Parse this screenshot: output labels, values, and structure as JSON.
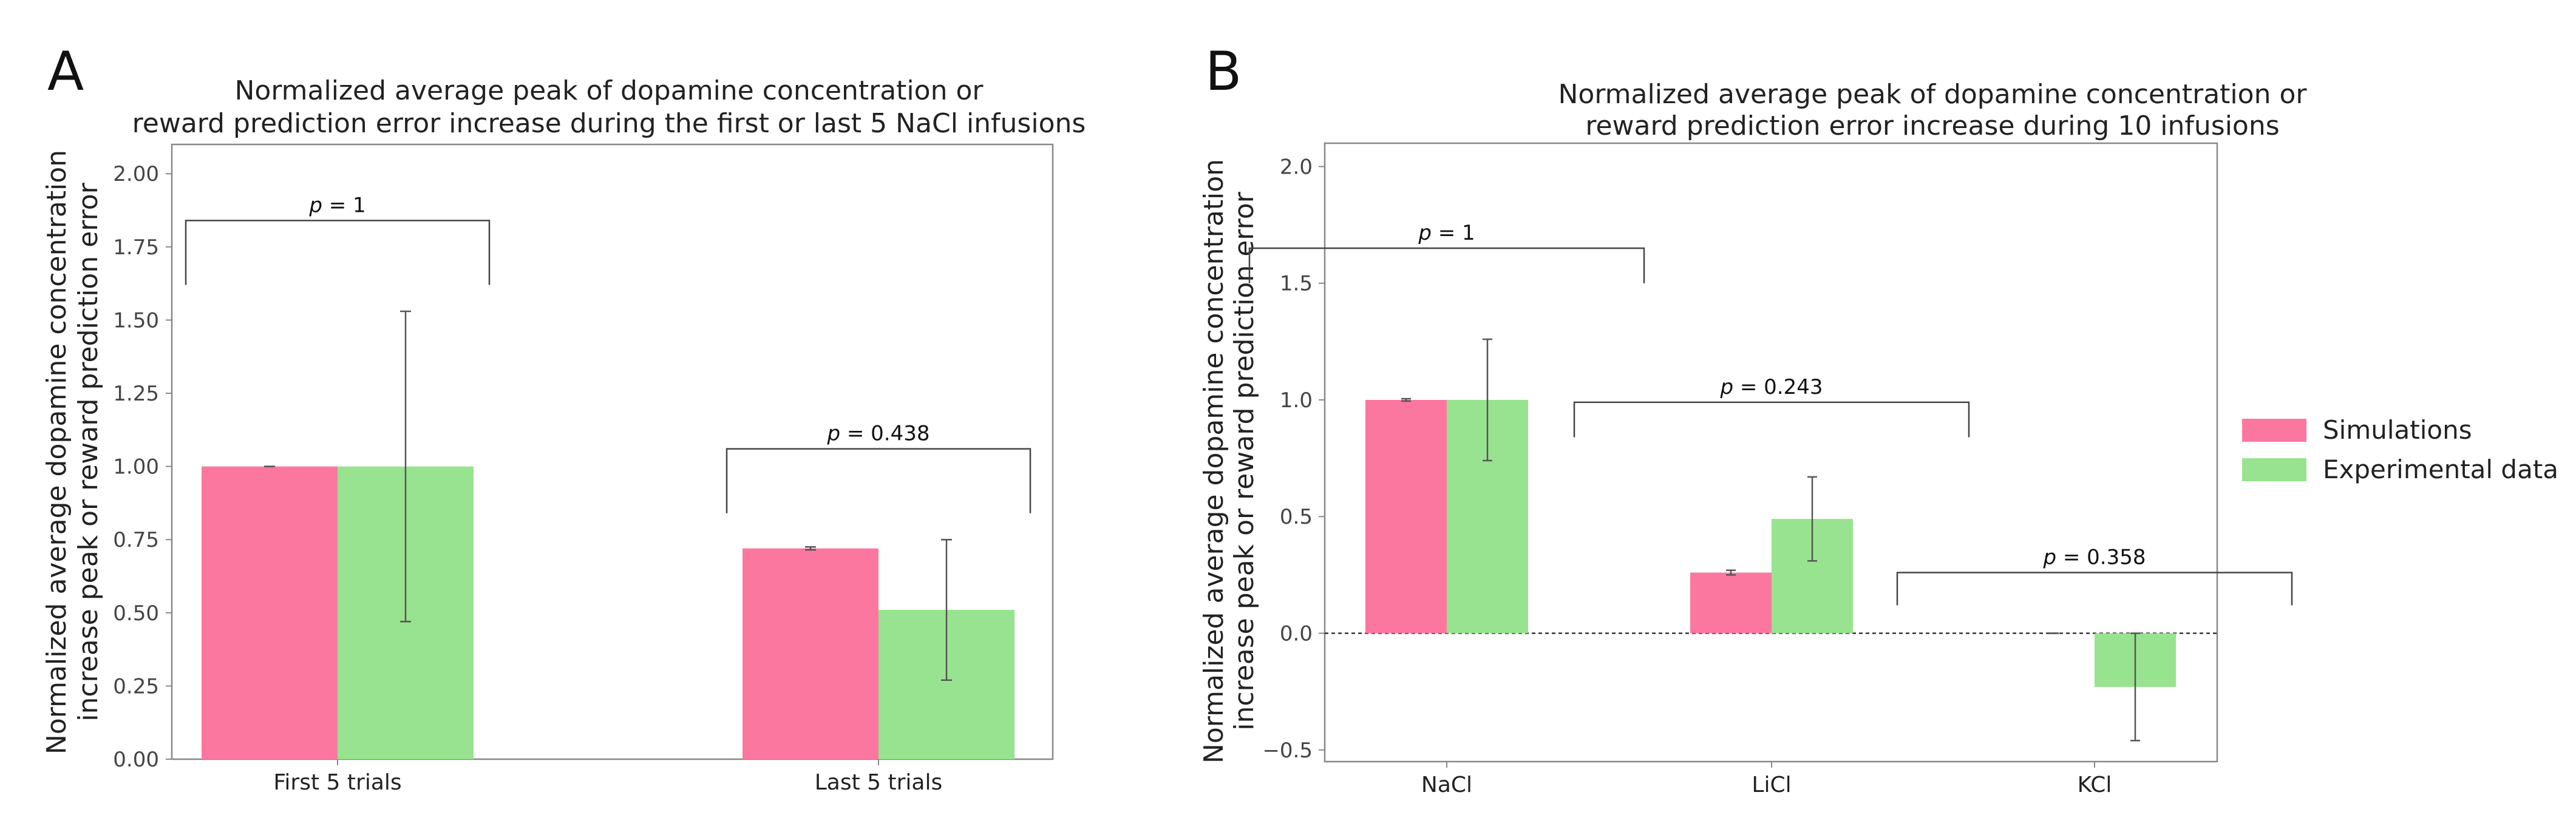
{
  "colors": {
    "simulations": "#fb77a0",
    "experimental": "#98e38f"
  },
  "legend": {
    "simulations_label": "Simulations",
    "experimental_label": "Experimental data"
  },
  "chart_data": [
    {
      "panel": "A",
      "type": "bar",
      "title_line1": "Normalized average peak of dopamine concentration or",
      "title_line2": "reward prediction error increase during the first or last 5 NaCl infusions",
      "ylabel_line1": "Normalized average dopamine concentration",
      "ylabel_line2": "increase peak or reward prediction error",
      "categories": [
        "First 5 trials",
        "Last 5 trials"
      ],
      "ylim": [
        0,
        2.1
      ],
      "yticks": [
        0.0,
        0.25,
        0.5,
        0.75,
        1.0,
        1.25,
        1.5,
        1.75,
        2.0
      ],
      "ytick_labels": [
        "0.00",
        "0.25",
        "0.50",
        "0.75",
        "1.00",
        "1.25",
        "1.50",
        "1.75",
        "2.00"
      ],
      "series": [
        {
          "name": "Simulations",
          "values": [
            1.0,
            0.72
          ],
          "err_low": [
            1.0,
            0.715
          ],
          "err_high": [
            1.0,
            0.725
          ]
        },
        {
          "name": "Experimental data",
          "values": [
            1.0,
            0.51
          ],
          "err_low": [
            0.47,
            0.27
          ],
          "err_high": [
            1.53,
            0.75
          ]
        }
      ],
      "pvalues": [
        {
          "category": 0,
          "label": "p = 1",
          "y": 1.84,
          "drop": 1.62
        },
        {
          "category": 1,
          "label": "p = 0.438",
          "y": 1.06,
          "drop": 0.84
        }
      ]
    },
    {
      "panel": "B",
      "type": "bar",
      "title_line1": "Normalized average peak of dopamine concentration or",
      "title_line2": "reward prediction error increase during 10 infusions",
      "ylabel_line1": "Normalized average dopamine concentration",
      "ylabel_line2": "increase peak or reward prediction error",
      "categories": [
        "NaCl",
        "LiCl",
        "KCl"
      ],
      "ylim": [
        -0.55,
        2.1
      ],
      "yticks": [
        -0.5,
        0.0,
        0.5,
        1.0,
        1.5,
        2.0
      ],
      "ytick_labels": [
        "−0.5",
        "0.0",
        "0.5",
        "1.0",
        "1.5",
        "2.0"
      ],
      "zero_line": true,
      "series": [
        {
          "name": "Simulations",
          "values": [
            1.0,
            0.26,
            0.0
          ],
          "err_low": [
            0.995,
            0.25,
            0.0
          ],
          "err_high": [
            1.005,
            0.27,
            0.0
          ]
        },
        {
          "name": "Experimental data",
          "values": [
            1.0,
            0.49,
            -0.23
          ],
          "err_low": [
            0.74,
            0.31,
            -0.46
          ],
          "err_high": [
            1.26,
            0.67,
            0.0
          ]
        }
      ],
      "pvalues": [
        {
          "category": 0,
          "label": "p = 1",
          "y": 1.65,
          "drop": 1.5
        },
        {
          "category": 1,
          "label": "p = 0.243",
          "y": 0.99,
          "drop": 0.84
        },
        {
          "category": 2,
          "label": "p = 0.358",
          "y": 0.26,
          "drop": 0.12
        }
      ]
    }
  ]
}
